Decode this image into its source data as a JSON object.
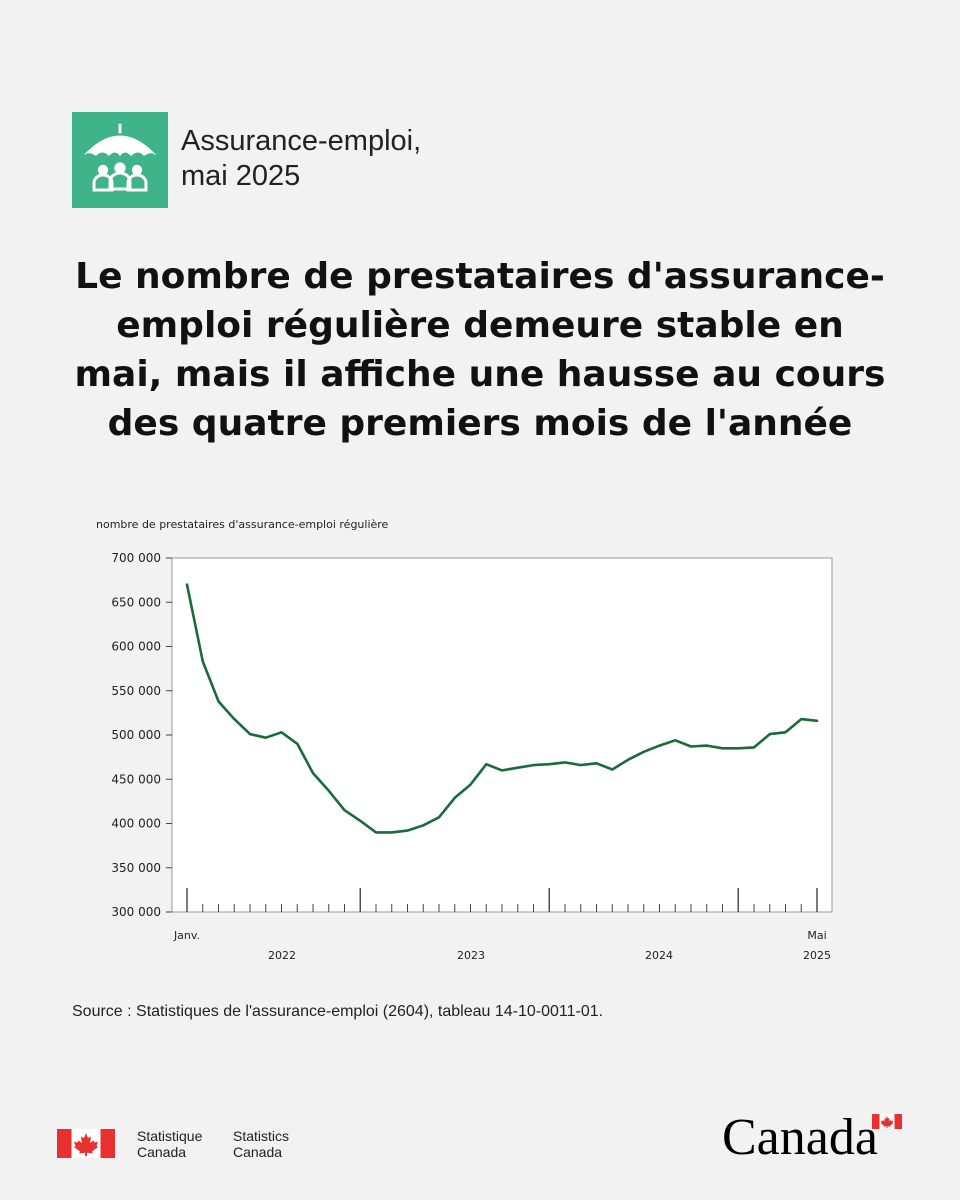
{
  "header": {
    "badge_icon": "umbrella-people-icon",
    "badge_color": "#3fb389",
    "label_line1": "Assurance-emploi,",
    "label_line2": "mai 2025"
  },
  "headline": {
    "line1": "Le nombre de prestataires d'assurance-",
    "line2": "emploi régulière demeure stable en",
    "line3": "mai, mais il affiche une hausse au cours",
    "line4": "des quatre premiers mois de l'année"
  },
  "chart_data": {
    "type": "line",
    "title": "",
    "ylabel": "nombre de prestataires d'assurance-emploi régulière",
    "xlabel": "",
    "ylim": [
      300000,
      700000
    ],
    "y_ticks": [
      300000,
      350000,
      400000,
      450000,
      500000,
      550000,
      600000,
      650000,
      700000
    ],
    "y_tick_labels": [
      "300 000",
      "350 000",
      "400 000",
      "450 000",
      "500 000",
      "550 000",
      "600 000",
      "650 000",
      "700 000"
    ],
    "x_start_label": "Janv.",
    "x_end_label": "Mai",
    "x_year_labels": [
      "2022",
      "2023",
      "2024",
      "2025"
    ],
    "grid": false,
    "line_color": "#1a6b3c",
    "series": [
      {
        "x": [
          "2022-01",
          "2022-02",
          "2022-03",
          "2022-04",
          "2022-05",
          "2022-06",
          "2022-07",
          "2022-08",
          "2022-09",
          "2022-10",
          "2022-11",
          "2022-12",
          "2023-01",
          "2023-02",
          "2023-03",
          "2023-04",
          "2023-05",
          "2023-06",
          "2023-07",
          "2023-08",
          "2023-09",
          "2023-10",
          "2023-11",
          "2023-12",
          "2024-01",
          "2024-02",
          "2024-03",
          "2024-04",
          "2024-05",
          "2024-06",
          "2024-07",
          "2024-08",
          "2024-09",
          "2024-10",
          "2024-11",
          "2024-12",
          "2025-01",
          "2025-02",
          "2025-03",
          "2025-04",
          "2025-05"
        ],
        "values": [
          670000,
          583000,
          538000,
          518000,
          501000,
          497000,
          503000,
          490000,
          457000,
          437000,
          415000,
          403000,
          390000,
          390000,
          392000,
          398000,
          407000,
          429000,
          444000,
          467000,
          460000,
          463000,
          466000,
          467000,
          469000,
          466000,
          468000,
          461000,
          472000,
          481000,
          488000,
          494000,
          487000,
          488000,
          485000,
          485000,
          486000,
          501000,
          503000,
          518000,
          516000
        ]
      }
    ]
  },
  "source": "Source : Statistiques de l'assurance-emploi (2604), tableau 14-10-0011-01.",
  "footer": {
    "statcan_fr_line1": "Statistique",
    "statcan_fr_line2": "Canada",
    "statcan_en_line1": "Statistics",
    "statcan_en_line2": "Canada",
    "wordmark": "Canada",
    "flag_red": "#e8312f"
  }
}
